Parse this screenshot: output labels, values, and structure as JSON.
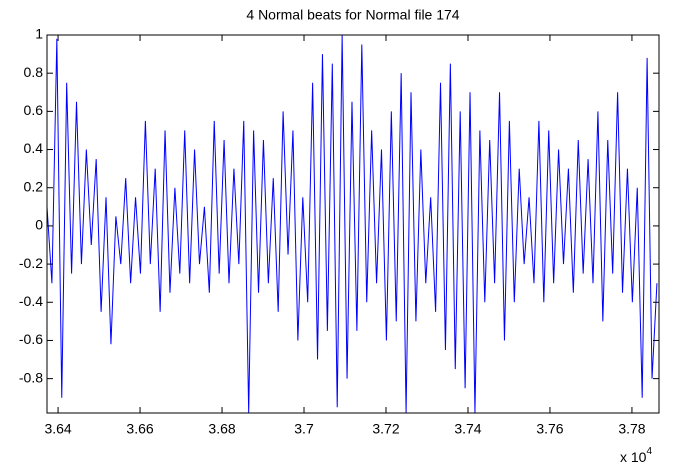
{
  "chart_data": {
    "type": "line",
    "title": "4 Normal beats for Normal file 174",
    "x_multiplier": "x 10",
    "x_multiplier_exponent": "4",
    "color": "#0000ff",
    "xlim": [
      36373,
      37866
    ],
    "ylim": [
      -0.98,
      1
    ],
    "xticks": [
      {
        "value": 36400,
        "label": "3.64"
      },
      {
        "value": 36600,
        "label": "3.66"
      },
      {
        "value": 36800,
        "label": "3.68"
      },
      {
        "value": 37000,
        "label": "3.7"
      },
      {
        "value": 37200,
        "label": "3.72"
      },
      {
        "value": 37400,
        "label": "3.74"
      },
      {
        "value": 37600,
        "label": "3.76"
      },
      {
        "value": 37800,
        "label": "3.78"
      }
    ],
    "yticks": [
      -0.8,
      -0.6,
      -0.4,
      -0.2,
      0,
      0.2,
      0.4,
      0.6,
      0.8,
      1
    ],
    "grid": false,
    "x": [
      36373,
      36385,
      36397,
      36409,
      36421,
      36433,
      36445,
      36457,
      36469,
      36481,
      36493,
      36505,
      36517,
      36529,
      36541,
      36553,
      36565,
      36577,
      36589,
      36601,
      36613,
      36625,
      36637,
      36649,
      36661,
      36673,
      36685,
      36697,
      36709,
      36721,
      36733,
      36745,
      36757,
      36769,
      36781,
      36793,
      36805,
      36817,
      36829,
      36841,
      36853,
      36865,
      36877,
      36889,
      36901,
      36913,
      36925,
      36937,
      36949,
      36961,
      36973,
      36985,
      36997,
      37009,
      37021,
      37033,
      37045,
      37057,
      37069,
      37081,
      37093,
      37105,
      37117,
      37129,
      37141,
      37153,
      37165,
      37177,
      37189,
      37201,
      37213,
      37225,
      37237,
      37249,
      37261,
      37273,
      37285,
      37297,
      37309,
      37321,
      37333,
      37345,
      37357,
      37369,
      37381,
      37393,
      37405,
      37417,
      37429,
      37441,
      37453,
      37465,
      37477,
      37489,
      37501,
      37513,
      37525,
      37537,
      37549,
      37561,
      37573,
      37585,
      37597,
      37609,
      37621,
      37633,
      37645,
      37657,
      37669,
      37681,
      37693,
      37705,
      37717,
      37729,
      37741,
      37753,
      37765,
      37777,
      37789,
      37801,
      37813,
      37825,
      37837,
      37849,
      37861
    ],
    "values": [
      0.1,
      -0.3,
      0.98,
      -0.9,
      0.75,
      -0.25,
      0.65,
      -0.2,
      0.4,
      -0.1,
      0.35,
      -0.45,
      0.15,
      -0.62,
      0.05,
      -0.2,
      0.25,
      -0.3,
      0.15,
      -0.25,
      0.55,
      -0.2,
      0.3,
      -0.45,
      0.5,
      -0.35,
      0.2,
      -0.25,
      0.5,
      -0.3,
      0.4,
      -0.2,
      0.1,
      -0.35,
      0.55,
      -0.25,
      0.45,
      -0.3,
      0.3,
      -0.2,
      0.55,
      -0.98,
      0.5,
      -0.35,
      0.45,
      -0.3,
      0.25,
      -0.45,
      0.6,
      -0.15,
      0.5,
      -0.6,
      0.15,
      -0.4,
      0.75,
      -0.7,
      0.9,
      -0.55,
      0.85,
      -0.95,
      1.0,
      -0.8,
      0.65,
      -0.55,
      0.95,
      -0.4,
      0.5,
      -0.3,
      0.4,
      -0.6,
      0.6,
      -0.5,
      0.8,
      -0.98,
      0.7,
      -0.5,
      0.4,
      -0.3,
      0.15,
      -0.45,
      0.75,
      -0.65,
      0.85,
      -0.75,
      0.6,
      -0.85,
      0.7,
      -0.98,
      0.5,
      -0.4,
      0.45,
      -0.3,
      0.7,
      -0.6,
      0.55,
      -0.4,
      0.3,
      -0.2,
      0.15,
      -0.3,
      0.55,
      -0.4,
      0.5,
      -0.3,
      0.4,
      -0.2,
      0.3,
      -0.35,
      0.45,
      -0.25,
      0.35,
      -0.3,
      0.6,
      -0.5,
      0.45,
      -0.25,
      0.7,
      -0.35,
      0.3,
      -0.4,
      0.2,
      -0.9,
      0.88,
      -0.8,
      -0.3
    ]
  }
}
